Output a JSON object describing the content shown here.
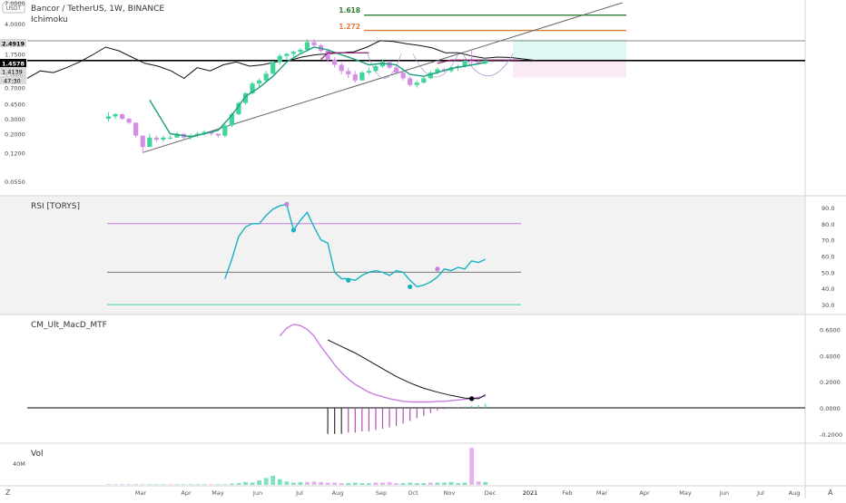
{
  "header": {
    "title": "Bancor / TetherUS, 1W, BINANCE",
    "indicator": "Ichimoku",
    "scale_unit": "USDT"
  },
  "fib": {
    "levels": [
      {
        "label": "1.618",
        "color": "#2e7d32"
      },
      {
        "label": "1.272",
        "color": "#e07b39"
      }
    ]
  },
  "price_badges": [
    {
      "label": "2.4919",
      "bg": "#d9d9d9",
      "fg": "#000000"
    },
    {
      "label": "1.4578",
      "bg": "#000000",
      "fg": "#ffffff"
    },
    {
      "label": "1.4139",
      "bg": "#d9d9d9",
      "fg": "#000000"
    },
    {
      "label": "47:30",
      "bg": "#d9d9d9",
      "fg": "#000000"
    }
  ],
  "panels": {
    "rsi_title": "RSI [TORYS]",
    "macd_title": "CM_Ult_MacD_MTF",
    "vol_title": "Vol"
  },
  "axis_buttons": {
    "left": "Z",
    "right": "A"
  },
  "colors": {
    "up": "#3fd59a",
    "down": "#d58ee6",
    "rsi": "#16b2c2",
    "macd": "#c67ee0",
    "signal": "#111111",
    "ma": "#1a9e7e",
    "grid": "#eeeeee"
  },
  "chart_data": [
    {
      "type": "candlestick",
      "title": "Bancor / TetherUS, 1W, BINANCE",
      "scale": "log",
      "ylim": [
        0.04,
        7.0
      ],
      "yticks": [
        "7.0000",
        "4.0000",
        "2.5000",
        "1.7500",
        "1.0000",
        "0.7000",
        "0.4500",
        "0.3000",
        "0.2000",
        "0.1200",
        "0.0550"
      ],
      "xticks": [
        "Mar",
        "Apr",
        "May",
        "Jun",
        "Jul",
        "Aug",
        "Sep",
        "Oct",
        "Nov",
        "Dec",
        "2021",
        "Feb",
        "Mar",
        "Apr",
        "May",
        "Jun",
        "Jul",
        "Aug",
        "Sep"
      ],
      "candles": [
        [
          0.3,
          0.36,
          0.28,
          0.32
        ],
        [
          0.32,
          0.35,
          0.3,
          0.34
        ],
        [
          0.34,
          0.35,
          0.29,
          0.3
        ],
        [
          0.3,
          0.31,
          0.26,
          0.27
        ],
        [
          0.27,
          0.27,
          0.18,
          0.19
        ],
        [
          0.19,
          0.19,
          0.12,
          0.14
        ],
        [
          0.14,
          0.2,
          0.14,
          0.18
        ],
        [
          0.18,
          0.19,
          0.16,
          0.17
        ],
        [
          0.17,
          0.19,
          0.16,
          0.18
        ],
        [
          0.18,
          0.19,
          0.17,
          0.18
        ],
        [
          0.18,
          0.21,
          0.18,
          0.2
        ],
        [
          0.2,
          0.2,
          0.17,
          0.18
        ],
        [
          0.18,
          0.2,
          0.17,
          0.19
        ],
        [
          0.19,
          0.21,
          0.18,
          0.2
        ],
        [
          0.2,
          0.22,
          0.19,
          0.21
        ],
        [
          0.21,
          0.22,
          0.19,
          0.2
        ],
        [
          0.2,
          0.2,
          0.18,
          0.19
        ],
        [
          0.19,
          0.26,
          0.18,
          0.25
        ],
        [
          0.25,
          0.36,
          0.24,
          0.34
        ],
        [
          0.34,
          0.48,
          0.33,
          0.46
        ],
        [
          0.46,
          0.62,
          0.44,
          0.6
        ],
        [
          0.6,
          0.82,
          0.58,
          0.78
        ],
        [
          0.78,
          0.9,
          0.7,
          0.85
        ],
        [
          0.85,
          1.1,
          0.82,
          1.02
        ],
        [
          1.02,
          1.45,
          1.0,
          1.4
        ],
        [
          1.4,
          1.75,
          1.3,
          1.65
        ],
        [
          1.65,
          1.8,
          1.5,
          1.75
        ],
        [
          1.75,
          1.9,
          1.6,
          1.85
        ],
        [
          1.85,
          2.05,
          1.75,
          1.95
        ],
        [
          1.95,
          2.6,
          1.85,
          2.4
        ],
        [
          2.4,
          2.6,
          2.1,
          2.2
        ],
        [
          2.2,
          2.3,
          1.8,
          1.9
        ],
        [
          1.9,
          2.0,
          1.4,
          1.5
        ],
        [
          1.5,
          1.6,
          1.2,
          1.3
        ],
        [
          1.3,
          1.4,
          1.0,
          1.1
        ],
        [
          1.1,
          1.2,
          0.9,
          1.0
        ],
        [
          1.0,
          1.1,
          0.8,
          0.85
        ],
        [
          0.85,
          1.1,
          0.85,
          1.05
        ],
        [
          1.05,
          1.2,
          1.0,
          1.1
        ],
        [
          1.1,
          1.3,
          1.05,
          1.25
        ],
        [
          1.25,
          1.5,
          1.2,
          1.4
        ],
        [
          1.4,
          1.45,
          1.15,
          1.2
        ],
        [
          1.2,
          1.25,
          1.0,
          1.05
        ],
        [
          1.05,
          1.1,
          0.85,
          0.9
        ],
        [
          0.9,
          0.95,
          0.72,
          0.75
        ],
        [
          0.75,
          0.85,
          0.7,
          0.8
        ],
        [
          0.8,
          0.95,
          0.78,
          0.9
        ],
        [
          0.9,
          1.1,
          0.88,
          1.05
        ],
        [
          1.05,
          1.2,
          1.0,
          1.15
        ],
        [
          1.15,
          1.2,
          1.05,
          1.1
        ],
        [
          1.1,
          1.25,
          1.05,
          1.2
        ],
        [
          1.2,
          1.3,
          1.1,
          1.25
        ],
        [
          1.25,
          1.5,
          1.2,
          1.45
        ],
        [
          1.45,
          2.0,
          1.3,
          1.4
        ],
        [
          1.4,
          1.5,
          1.3,
          1.35
        ],
        [
          1.35,
          1.6,
          1.3,
          1.46
        ]
      ],
      "conversion_line": [
        [
          6,
          0.5
        ],
        [
          9,
          0.2
        ],
        [
          12,
          0.185
        ],
        [
          14,
          0.2
        ],
        [
          16,
          0.22
        ],
        [
          18,
          0.33
        ],
        [
          20,
          0.55
        ],
        [
          22,
          0.7
        ],
        [
          24,
          0.95
        ],
        [
          26,
          1.4
        ],
        [
          28,
          1.75
        ],
        [
          30,
          2.1
        ],
        [
          32,
          1.95
        ],
        [
          34,
          1.7
        ],
        [
          36,
          1.5
        ],
        [
          38,
          1.3
        ],
        [
          40,
          1.35
        ],
        [
          42,
          1.3
        ],
        [
          44,
          1.0
        ],
        [
          46,
          0.95
        ],
        [
          48,
          1.05
        ],
        [
          50,
          1.18
        ],
        [
          52,
          1.25
        ],
        [
          55,
          1.38
        ]
      ],
      "base_line": [
        [
          0,
          0.9
        ],
        [
          2,
          1.1
        ],
        [
          4,
          1.05
        ],
        [
          6,
          1.2
        ],
        [
          8,
          1.4
        ],
        [
          10,
          1.7
        ],
        [
          12,
          2.1
        ],
        [
          14,
          1.9
        ],
        [
          16,
          1.6
        ],
        [
          18,
          1.35
        ],
        [
          20,
          1.25
        ],
        [
          22,
          1.1
        ],
        [
          24,
          0.9
        ],
        [
          26,
          1.2
        ],
        [
          28,
          1.1
        ],
        [
          30,
          1.3
        ],
        [
          32,
          1.4
        ],
        [
          34,
          1.25
        ],
        [
          36,
          1.3
        ],
        [
          38,
          1.4
        ],
        [
          40,
          1.45
        ],
        [
          42,
          1.6
        ],
        [
          44,
          1.7
        ],
        [
          46,
          1.75
        ],
        [
          48,
          1.8
        ],
        [
          50,
          1.85
        ],
        [
          52,
          2.1
        ],
        [
          54,
          2.5
        ],
        [
          56,
          2.45
        ],
        [
          58,
          2.3
        ],
        [
          60,
          2.2
        ],
        [
          62,
          2.05
        ],
        [
          64,
          1.8
        ],
        [
          66,
          1.8
        ],
        [
          68,
          1.65
        ],
        [
          70,
          1.55
        ],
        [
          72,
          1.6
        ],
        [
          74,
          1.58
        ],
        [
          76,
          1.52
        ],
        [
          78,
          1.45
        ]
      ],
      "trendline": [
        [
          5,
          0.12
        ],
        [
          75,
          7.0
        ]
      ],
      "horizontal_levels": [
        {
          "value": 2.4919,
          "label": "2.4919"
        },
        {
          "value": 1.4578,
          "label": "1.4578"
        }
      ],
      "fib_levels": [
        {
          "label": "1.618",
          "value": 5.0
        },
        {
          "label": "1.272",
          "value": 3.3
        }
      ]
    },
    {
      "type": "line",
      "title": "RSI [TORYS]",
      "ylim": [
        25,
        95
      ],
      "yticks": [
        "90.0",
        "80.0",
        "70.0",
        "60.0",
        "50.0",
        "40.0",
        "30.0"
      ],
      "levels": [
        80,
        50,
        30
      ],
      "x": [
        17,
        18,
        19,
        20,
        21,
        22,
        23,
        24,
        25,
        26,
        27,
        28,
        29,
        30,
        31,
        32,
        33,
        34,
        35,
        36,
        37,
        38,
        39,
        40,
        41,
        42,
        43,
        44,
        45,
        46,
        47,
        48,
        49,
        50,
        51,
        52,
        53,
        54,
        55
      ],
      "values": [
        46,
        58,
        72,
        78,
        80,
        80,
        85,
        89,
        91,
        92,
        76,
        82,
        87,
        78,
        70,
        68,
        50,
        46,
        46,
        45,
        48,
        50,
        51,
        50,
        48,
        51,
        50,
        45,
        41,
        42,
        44,
        47,
        52,
        51,
        53,
        52,
        57,
        56,
        58
      ],
      "markers": [
        {
          "x": 26,
          "y": 92,
          "color": "#c67ee0"
        },
        {
          "x": 27,
          "y": 76,
          "color": "#16b2c2"
        },
        {
          "x": 35,
          "y": 45,
          "color": "#16b2c2"
        },
        {
          "x": 44,
          "y": 41,
          "color": "#16b2c2"
        },
        {
          "x": 48,
          "y": 52,
          "color": "#c67ee0"
        }
      ]
    },
    {
      "type": "line",
      "title": "CM_Ult_MacD_MTF",
      "ylim": [
        -0.25,
        0.68
      ],
      "yticks": [
        "0.6000",
        "0.4000",
        "0.2000",
        "0.0000",
        "-0.2000"
      ],
      "series": [
        {
          "x": [
            25,
            26,
            27,
            28,
            29,
            30,
            31,
            32,
            33,
            34,
            35,
            36,
            37,
            38,
            39,
            40,
            41,
            42,
            43,
            44,
            45,
            46,
            47,
            48,
            49,
            50,
            51,
            52,
            53,
            54,
            55
          ],
          "values": [
            0.55,
            0.61,
            0.64,
            0.63,
            0.6,
            0.55,
            0.47,
            0.4,
            0.33,
            0.27,
            0.22,
            0.18,
            0.15,
            0.12,
            0.1,
            0.085,
            0.07,
            0.06,
            0.05,
            0.045,
            0.045,
            0.045,
            0.045,
            0.05,
            0.05,
            0.055,
            0.06,
            0.065,
            0.07,
            0.08,
            0.09
          ]
        },
        {
          "x": [
            32,
            34,
            36,
            38,
            40,
            42,
            44,
            46,
            48,
            50,
            52,
            54,
            55
          ],
          "values": [
            0.52,
            0.47,
            0.42,
            0.36,
            0.3,
            0.24,
            0.19,
            0.15,
            0.12,
            0.095,
            0.075,
            0.07,
            0.1
          ]
        }
      ],
      "histogram": [
        {
          "x": 32,
          "value": -0.2
        },
        {
          "x": 33,
          "value": -0.2
        },
        {
          "x": 34,
          "value": -0.2
        },
        {
          "x": 35,
          "value": -0.19
        },
        {
          "x": 36,
          "value": -0.19
        },
        {
          "x": 37,
          "value": -0.18
        },
        {
          "x": 38,
          "value": -0.18
        },
        {
          "x": 39,
          "value": -0.17
        },
        {
          "x": 40,
          "value": -0.16
        },
        {
          "x": 41,
          "value": -0.15
        },
        {
          "x": 42,
          "value": -0.14
        },
        {
          "x": 43,
          "value": -0.12
        },
        {
          "x": 44,
          "value": -0.1
        },
        {
          "x": 45,
          "value": -0.08
        },
        {
          "x": 46,
          "value": -0.06
        },
        {
          "x": 47,
          "value": -0.04
        },
        {
          "x": 48,
          "value": -0.02
        },
        {
          "x": 49,
          "value": -0.01
        },
        {
          "x": 50,
          "value": -0.005
        },
        {
          "x": 51,
          "value": 0.005
        },
        {
          "x": 52,
          "value": 0.01
        },
        {
          "x": 53,
          "value": 0.015
        },
        {
          "x": 54,
          "value": 0.02
        },
        {
          "x": 55,
          "value": 0.03
        }
      ],
      "cross_marker": {
        "x": 53,
        "y": 0.07
      }
    },
    {
      "type": "bar",
      "title": "Vol",
      "yticks": [
        "40M"
      ],
      "ylim": [
        0,
        70
      ],
      "values": [
        1,
        1,
        1,
        1,
        1,
        1,
        1,
        1,
        1,
        1,
        1,
        1,
        1,
        1,
        1,
        1,
        1,
        1,
        2,
        3,
        5,
        4,
        8,
        12,
        16,
        10,
        6,
        4,
        5,
        5,
        6,
        5,
        4,
        4,
        3,
        3,
        4,
        3,
        3,
        4,
        4,
        5,
        3,
        3,
        4,
        3,
        3,
        4,
        4,
        4,
        5,
        3,
        4,
        65,
        6,
        5
      ],
      "colors_up": [
        false,
        false,
        false,
        false,
        true,
        false,
        true,
        true,
        true,
        false,
        true,
        true,
        true,
        true,
        true,
        false,
        true,
        true,
        true,
        true,
        true,
        true,
        true,
        true,
        true,
        true,
        true,
        true,
        true,
        false,
        false,
        false,
        false,
        false,
        false,
        true,
        true,
        true,
        true,
        false,
        false,
        false,
        false,
        true,
        true,
        true,
        true,
        false,
        true,
        true,
        true,
        true,
        true,
        false,
        false,
        true
      ]
    }
  ]
}
